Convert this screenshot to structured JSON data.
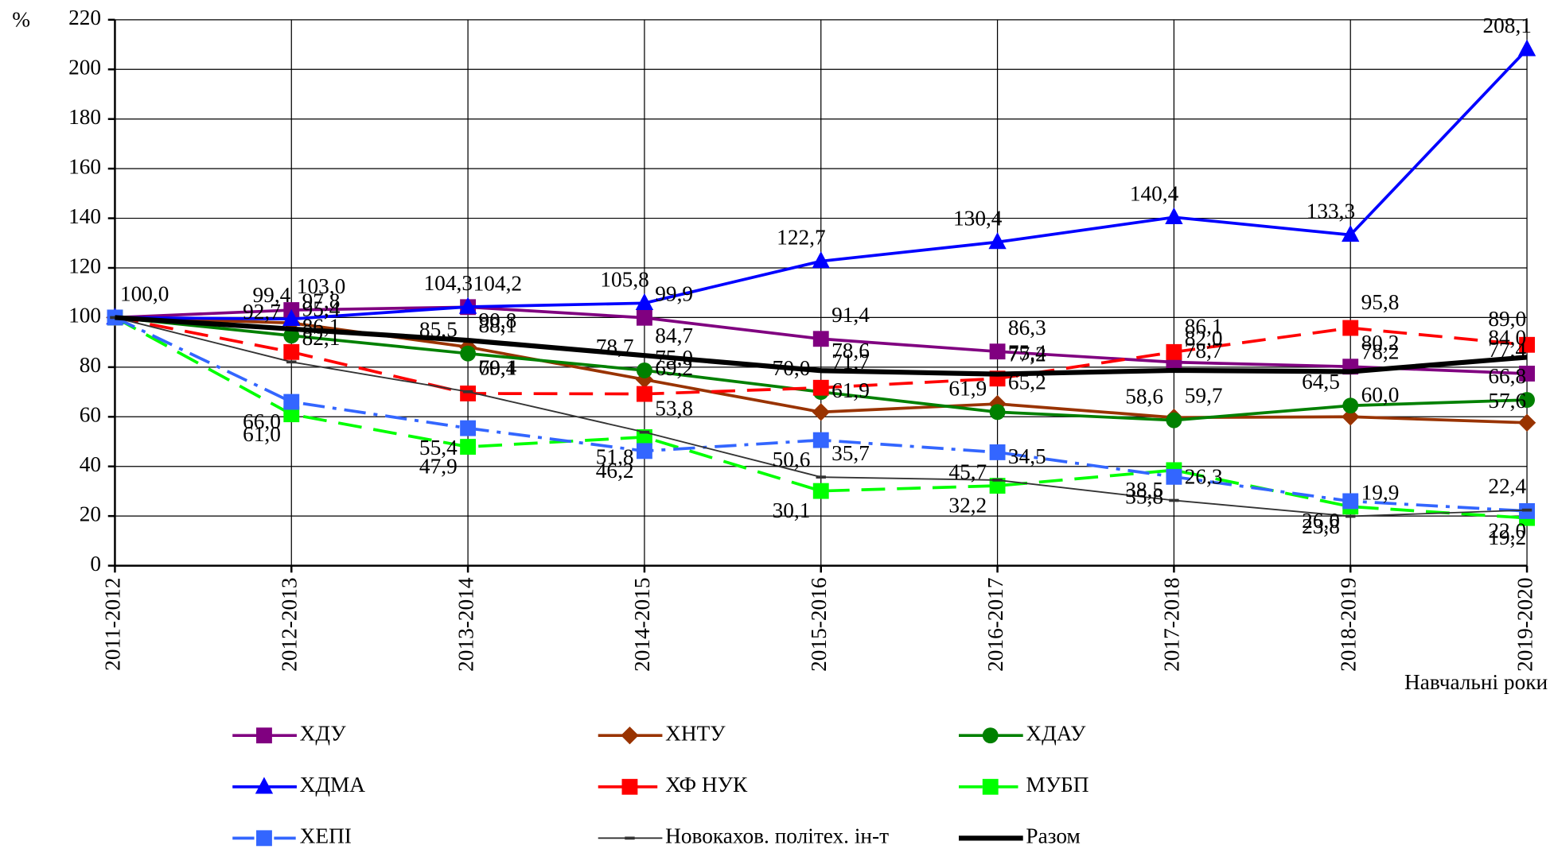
{
  "chart_data": {
    "type": "line",
    "y_label": "%",
    "x_label": "Навчальні роки",
    "categories": [
      "2011-2012",
      "2012-2013",
      "2013-2014",
      "2014-2015",
      "2015-2016",
      "2016-2017",
      "2017-2018",
      "2018-2019",
      "2019-2020"
    ],
    "ylim": [
      0,
      220
    ],
    "yticks": [
      0,
      20,
      40,
      60,
      80,
      100,
      120,
      140,
      160,
      180,
      200,
      220
    ],
    "grid": true,
    "legend": "bottom",
    "series": [
      {
        "name": "ХДУ",
        "color": "#800080",
        "values": [
          100,
          103.0,
          104.2,
          99.9,
          91.4,
          86.3,
          82.0,
          80.2,
          77.4
        ],
        "value_labels": [
          null,
          "103,0",
          "104,2",
          "99,9",
          "91,4",
          "86,3",
          "82,0",
          "80,2",
          "77,4"
        ]
      },
      {
        "name": "ХНТУ",
        "color": "#993300",
        "values": [
          100,
          97.8,
          88.1,
          75.0,
          61.9,
          65.2,
          59.7,
          60.0,
          57.6
        ],
        "value_labels": [
          null,
          "97,8",
          "88,1",
          "75,0",
          "61,9",
          "65,2",
          "59,7",
          "60,0",
          "57,6"
        ]
      },
      {
        "name": "ХДАУ",
        "color": "#008000",
        "values": [
          100,
          92.7,
          85.5,
          78.7,
          70.0,
          61.9,
          58.6,
          64.5,
          66.8
        ],
        "value_labels": [
          null,
          "92,7",
          "85,5",
          "78,7",
          "70,0",
          "61,9",
          "58,6",
          "64,5",
          "66,8"
        ]
      },
      {
        "name": "ХДМА",
        "color": "#0000FF",
        "values": [
          100,
          99.4,
          104.3,
          105.8,
          122.7,
          130.4,
          140.4,
          133.3,
          208.1
        ],
        "value_labels": [
          "100,0",
          "99,4",
          "104,3",
          "105,8",
          "122,7",
          "130,4",
          "140,4",
          "133,3",
          "208,1"
        ]
      },
      {
        "name": "ХФ НУК",
        "color": "#FF0000",
        "values": [
          100,
          86.1,
          69.4,
          69.2,
          71.7,
          75.4,
          86.1,
          95.8,
          89.0
        ],
        "value_labels": [
          null,
          "86,1",
          "69,4",
          "69,2",
          "71,7",
          "75,4",
          "86,1",
          "95,8",
          "89,0"
        ]
      },
      {
        "name": "МУБП",
        "color": "#00FF00",
        "values": [
          100,
          61.0,
          47.9,
          51.8,
          30.1,
          32.2,
          38.5,
          23.8,
          19.2
        ],
        "value_labels": [
          null,
          "61,0",
          "47,9",
          "51,8",
          "30,1",
          "32,2",
          "38,5",
          "23,8",
          "19,2"
        ]
      },
      {
        "name": "ХЕПІ",
        "color": "#3366FF",
        "values": [
          100,
          66.0,
          55.4,
          46.2,
          50.6,
          45.7,
          35.8,
          26.0,
          22.0
        ],
        "value_labels": [
          null,
          "66,0",
          "55,4",
          "46,2",
          "50,6",
          "45,7",
          "35,8",
          "26,0",
          "22,0"
        ]
      },
      {
        "name": "Новокахов. політех. ін-т",
        "color": "#333333",
        "values": [
          100,
          82.1,
          70.1,
          53.8,
          35.7,
          34.5,
          26.3,
          19.9,
          22.4
        ],
        "value_labels": [
          null,
          "82,1",
          "70,1",
          "53,8",
          "35,7",
          "34,5",
          "26,3",
          "19,9",
          "22,4"
        ]
      },
      {
        "name": "Разом",
        "color": "#000000",
        "values": [
          100,
          95.4,
          90.8,
          84.7,
          78.6,
          77.2,
          78.7,
          78.2,
          84.0
        ],
        "value_labels": [
          null,
          "95,4",
          "90,8",
          "84,7",
          "78,6",
          "77,2",
          "78,7",
          "78,2",
          "84,0"
        ]
      }
    ]
  }
}
